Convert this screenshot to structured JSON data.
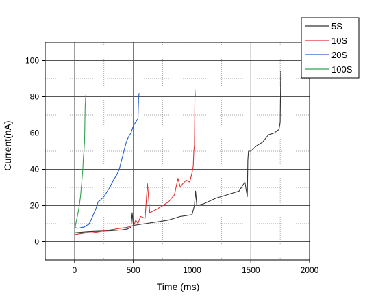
{
  "chart_data": {
    "type": "line",
    "title": "",
    "xlabel": "Time (ms)",
    "ylabel": "Current(nA)",
    "xlim": [
      -250,
      2000
    ],
    "ylim": [
      -10,
      110
    ],
    "x_ticks": [
      0,
      500,
      1000,
      1500,
      2000
    ],
    "x_tick_labels": [
      "0",
      "500",
      "1000",
      "1500",
      "2000"
    ],
    "y_ticks": [
      0,
      20,
      40,
      60,
      80,
      100
    ],
    "y_tick_labels": [
      "0",
      "20",
      "40",
      "60",
      "80",
      "100"
    ],
    "grid": true,
    "legend_position": "top-right outside",
    "series": [
      {
        "name": "5S",
        "color": "#333333",
        "x": [
          0,
          100,
          200,
          300,
          400,
          450,
          480,
          490,
          500,
          600,
          700,
          800,
          900,
          1000,
          1020,
          1030,
          1040,
          1100,
          1200,
          1300,
          1400,
          1450,
          1470,
          1475,
          1480,
          1500,
          1550,
          1600,
          1650,
          1700,
          1720,
          1740,
          1750,
          1755,
          1758
        ],
        "y": [
          5,
          5.5,
          5.8,
          6,
          6.5,
          7,
          8,
          16,
          9,
          10,
          11,
          12,
          14,
          15,
          20,
          28,
          20,
          21,
          24,
          26,
          28,
          33,
          25,
          45,
          50,
          50,
          53,
          55,
          59,
          60,
          61,
          62,
          66,
          94,
          90
        ]
      },
      {
        "name": "10S",
        "color": "#e03030",
        "x": [
          0,
          50,
          100,
          150,
          200,
          250,
          300,
          350,
          400,
          450,
          500,
          510,
          520,
          540,
          560,
          600,
          620,
          640,
          700,
          750,
          800,
          850,
          880,
          900,
          920,
          950,
          980,
          1000,
          1010,
          1015,
          1020,
          1025,
          1028
        ],
        "y": [
          4,
          4.5,
          5,
          5,
          5.5,
          6,
          6.5,
          7,
          7.5,
          8,
          9,
          10,
          12,
          10,
          14,
          13,
          32,
          16,
          18,
          20,
          22,
          26,
          35,
          30,
          32,
          34,
          33,
          38,
          42,
          50,
          53,
          84,
          80
        ]
      },
      {
        "name": "20S",
        "color": "#2060cc",
        "x": [
          0,
          20,
          40,
          60,
          80,
          100,
          120,
          140,
          160,
          180,
          200,
          220,
          250,
          280,
          300,
          330,
          360,
          380,
          400,
          420,
          440,
          460,
          480,
          500,
          520,
          540,
          545,
          550
        ],
        "y": [
          8,
          7.5,
          7.5,
          8,
          8,
          9,
          9.5,
          12,
          15,
          18,
          22,
          23,
          25,
          28,
          30,
          34,
          37,
          40,
          45,
          50,
          55,
          58,
          60,
          64,
          66,
          68,
          80,
          82
        ]
      },
      {
        "name": "100S",
        "color": "#30a050",
        "x": [
          0,
          10,
          20,
          30,
          40,
          50,
          60,
          70,
          75,
          80,
          85,
          90,
          95
        ],
        "y": [
          6,
          10,
          13,
          16,
          20,
          25,
          32,
          40,
          47,
          50,
          56,
          74,
          81
        ]
      }
    ]
  }
}
